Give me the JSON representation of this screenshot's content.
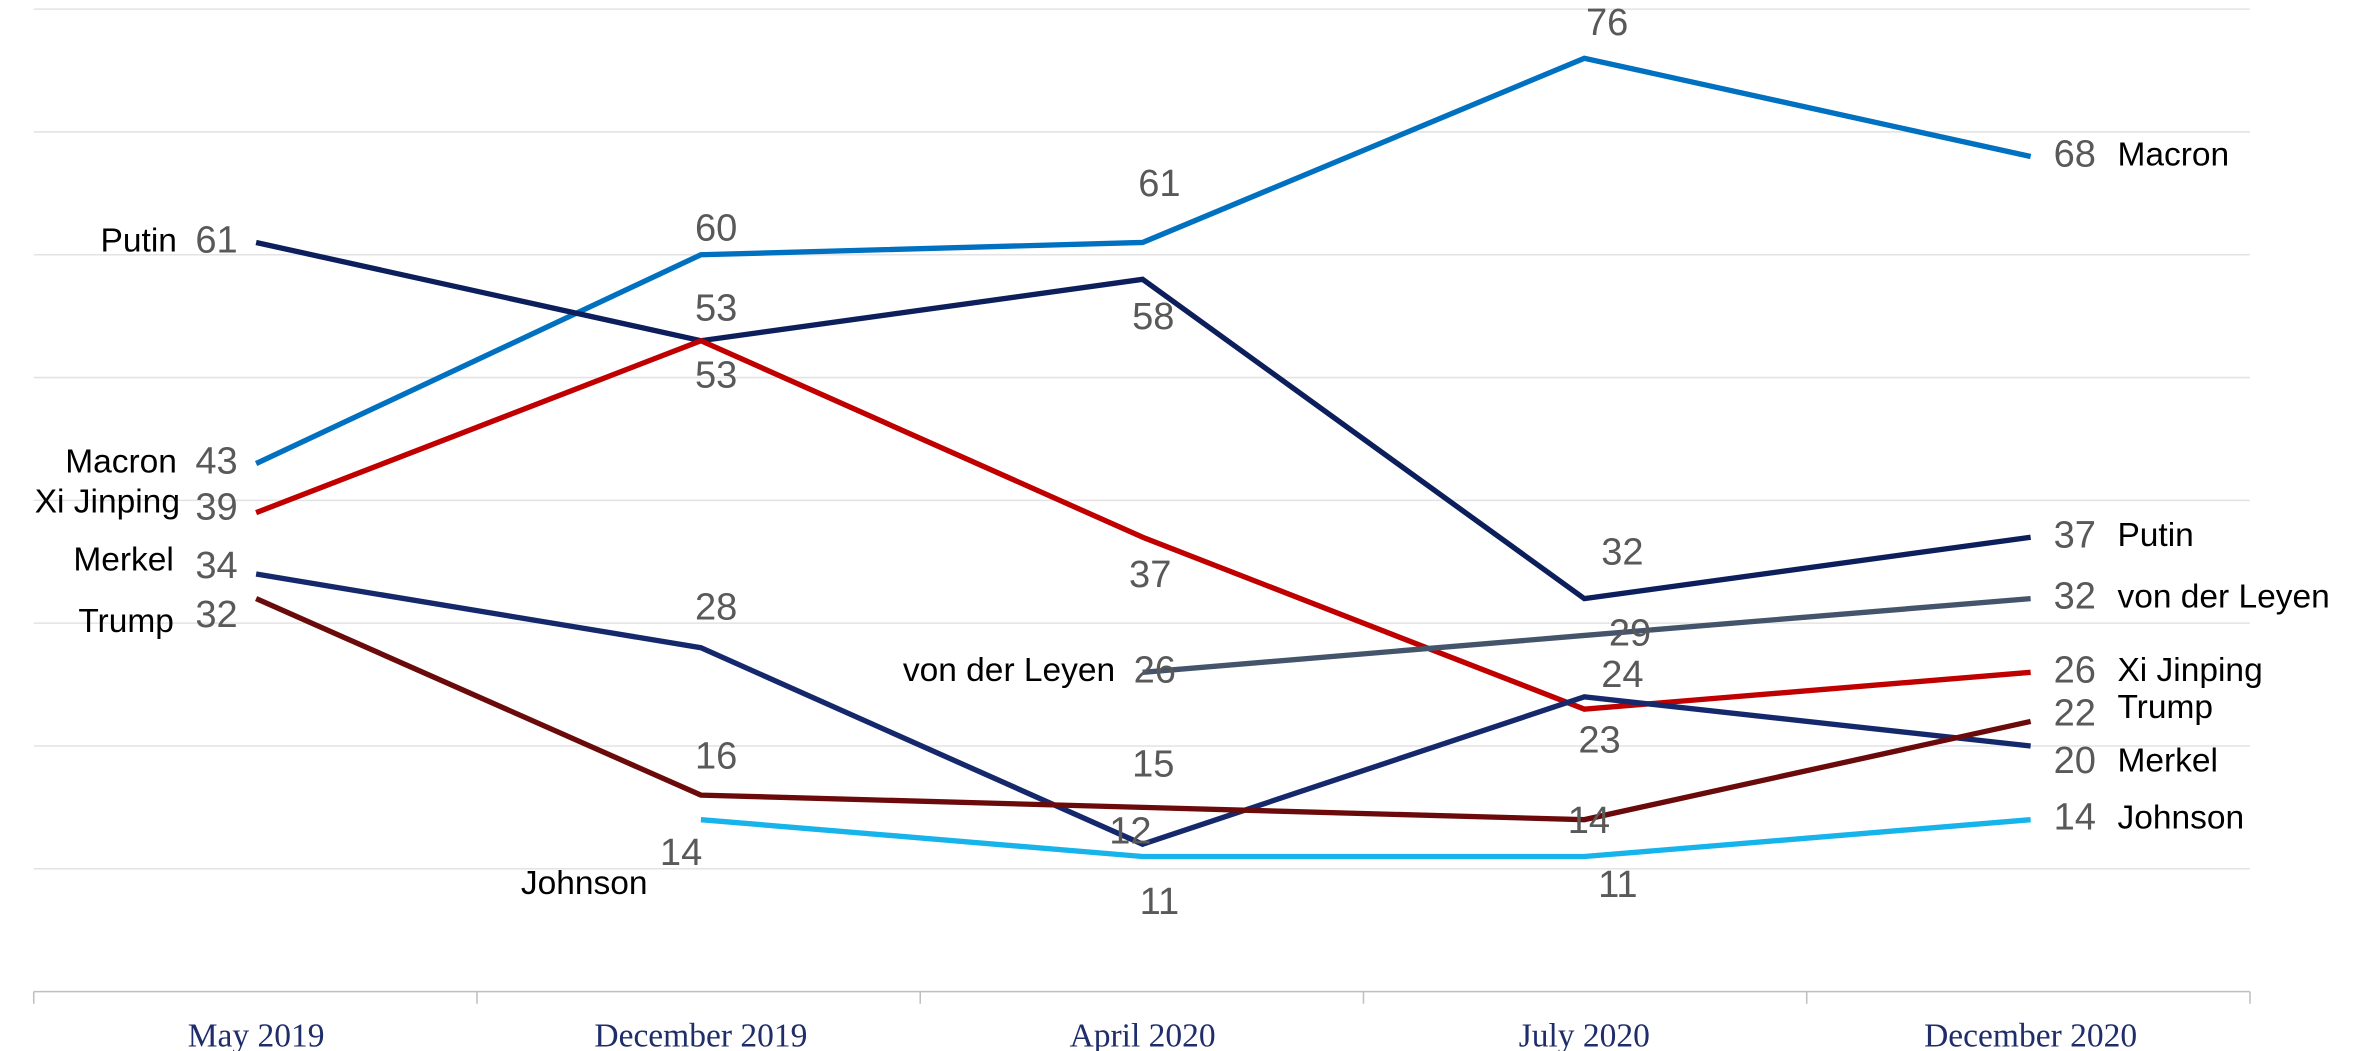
{
  "chart_data": {
    "type": "line",
    "categories": [
      "May 2019",
      "December 2019",
      "April 2020",
      "July 2020",
      "December 2020"
    ],
    "ylim": [
      0,
      80
    ],
    "yticks": [
      0,
      10,
      20,
      30,
      40,
      50,
      60,
      70,
      80
    ],
    "grid": true,
    "series": [
      {
        "name": "Macron",
        "color": "#0070c0",
        "values": [
          43,
          60,
          61,
          76,
          68
        ]
      },
      {
        "name": "Putin",
        "color": "#0c1f5c",
        "values": [
          61,
          53,
          58,
          32,
          37
        ]
      },
      {
        "name": "Xi Jinping",
        "color": "#c00000",
        "values": [
          39,
          53,
          37,
          23,
          26
        ]
      },
      {
        "name": "Merkel",
        "color": "#14286b",
        "values": [
          34,
          28,
          12,
          24,
          20
        ]
      },
      {
        "name": "Trump",
        "color": "#6b0a0a",
        "values": [
          32,
          16,
          15,
          14,
          22
        ]
      },
      {
        "name": "Johnson",
        "color": "#16b4ea",
        "values": [
          null,
          14,
          11,
          11,
          14
        ]
      },
      {
        "name": "von der Leyen",
        "color": "#44546a",
        "values": [
          null,
          null,
          26,
          29,
          32
        ]
      }
    ]
  }
}
